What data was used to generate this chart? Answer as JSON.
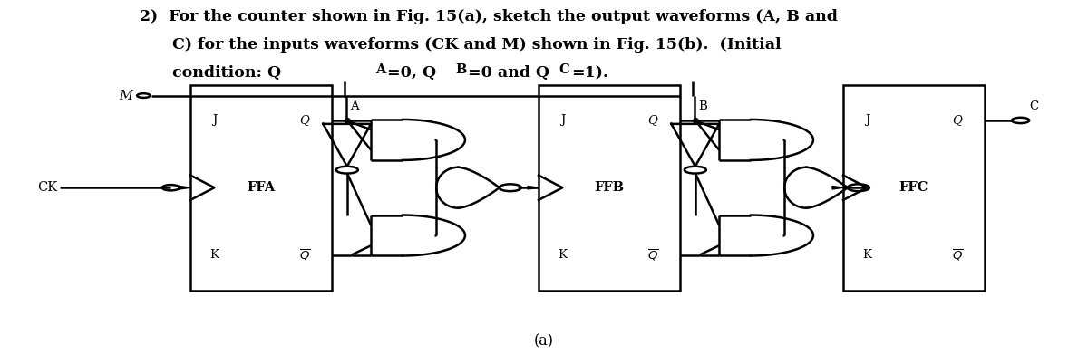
{
  "bg_color": "#ffffff",
  "text_color": "#000000",
  "caption": "(a)",
  "ff_configs": [
    {
      "bx": 0.175,
      "by": 0.18,
      "bw": 0.13,
      "bh": 0.58,
      "label": "FFA",
      "Qlabel": "A"
    },
    {
      "bx": 0.495,
      "by": 0.18,
      "bw": 0.13,
      "bh": 0.58,
      "label": "FFB",
      "Qlabel": "B"
    },
    {
      "bx": 0.775,
      "by": 0.18,
      "bw": 0.13,
      "bh": 0.58,
      "label": "FFC",
      "Qlabel": "C"
    }
  ],
  "title_line1": "2)  For the counter shown in Fig. 15(a), sketch the output waveforms (A, B and",
  "title_line2": "      C) for the inputs waveforms (CK and M) shown in Fig. 15(b).  (Initial",
  "title_line3": "      condition: Q",
  "title_line3b": "A",
  "title_line3c": "=0, Q",
  "title_line3d": "B",
  "title_line3e": "=0 and Q",
  "title_line3f": "C",
  "title_line3g": "=1).",
  "M_label": "M",
  "CK_label": "CK"
}
